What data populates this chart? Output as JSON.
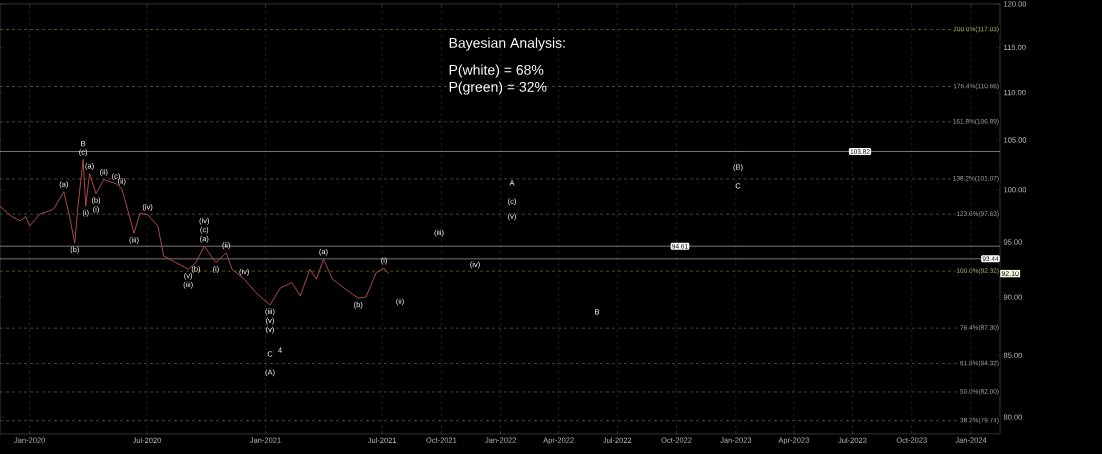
{
  "chart_data": {
    "type": "line",
    "log": "y",
    "grid": "x",
    "marker": "none",
    "xlim": [
      "2019-11-16",
      "2024-02-15"
    ],
    "ylim": [
      78.7,
      120
    ],
    "xticks": [
      {
        "value": "2020-01-01",
        "label": "Jan-2020"
      },
      {
        "value": "2020-07-01",
        "label": "Jul-2020"
      },
      {
        "value": "2021-01-01",
        "label": "Jan-2021"
      },
      {
        "value": "2021-07-01",
        "label": "Jul-2021"
      },
      {
        "value": "2021-10-01",
        "label": "Oct-2021"
      },
      {
        "value": "2022-01-01",
        "label": "Jan-2022"
      },
      {
        "value": "2022-04-01",
        "label": "Apr-2022"
      },
      {
        "value": "2022-07-01",
        "label": "Jul-2022"
      },
      {
        "value": "2022-10-01",
        "label": "Oct-2022"
      },
      {
        "value": "2023-01-01",
        "label": "Jan-2023"
      },
      {
        "value": "2023-04-01",
        "label": "Apr-2023"
      },
      {
        "value": "2023-07-01",
        "label": "Jul-2023"
      },
      {
        "value": "2023-10-01",
        "label": "Oct-2023"
      },
      {
        "value": "2024-01-01",
        "label": "Jan-2024"
      }
    ],
    "yticks": [
      {
        "value": 80,
        "label": "80.00"
      },
      {
        "value": 85,
        "label": "85.00"
      },
      {
        "value": 90,
        "label": "90.00"
      },
      {
        "value": 95,
        "label": "95.00"
      },
      {
        "value": 100,
        "label": "100.00"
      },
      {
        "value": 105,
        "label": "105.00"
      },
      {
        "value": 110,
        "label": "110.00"
      },
      {
        "value": 115,
        "label": "115.00"
      },
      {
        "value": 120,
        "label": "120.00"
      }
    ],
    "series": [
      {
        "color": "#c0504d",
        "x": [
          "2019-11-16",
          "2019-12-04",
          "2019-12-17",
          "2019-12-26",
          "2020-01-01",
          "2020-01-16",
          "2020-02-07",
          "2020-02-23",
          "2020-03-03",
          "2020-03-11",
          "2020-03-16",
          "2020-03-24",
          "2020-03-28",
          "2020-04-03",
          "2020-04-13",
          "2020-04-25",
          "2020-05-14",
          "2020-05-23",
          "2020-06-01",
          "2020-06-11",
          "2020-06-20",
          "2020-07-02",
          "2020-07-18",
          "2020-07-27",
          "2020-08-15",
          "2020-09-03",
          "2020-09-15",
          "2020-09-28",
          "2020-10-16",
          "2020-11-01",
          "2020-11-10",
          "2020-11-29",
          "2020-12-17",
          "2021-01-08",
          "2021-01-24",
          "2021-02-11",
          "2021-02-24",
          "2021-03-11",
          "2021-03-21",
          "2021-04-01",
          "2021-04-15",
          "2021-05-03",
          "2021-05-25",
          "2021-06-06",
          "2021-06-22",
          "2021-07-04",
          "2021-07-11"
        ],
        "values": [
          98.4,
          97.4,
          97.0,
          97.4,
          96.5,
          97.6,
          98.1,
          99.8,
          97.4,
          94.9,
          98.4,
          103.0,
          98.4,
          101.6,
          99.6,
          101.0,
          100.6,
          100.1,
          98.1,
          95.8,
          97.7,
          97.6,
          96.5,
          93.7,
          93.1,
          92.5,
          93.1,
          94.6,
          93.1,
          94.0,
          92.5,
          91.6,
          90.4,
          89.3,
          90.8,
          91.3,
          90.1,
          92.5,
          91.6,
          93.4,
          91.6,
          90.8,
          89.9,
          90.0,
          92.2,
          92.6,
          92.1
        ]
      }
    ],
    "ref_lines": [
      {
        "axis": "y",
        "value": 117.03,
        "label": "200.0%(117.03)",
        "color": "#8c8c00",
        "line_style": "dashed"
      },
      {
        "axis": "y",
        "value": 110.66,
        "label": "176.4%(110.66)",
        "color": "#6e6e6e",
        "line_style": "dashed"
      },
      {
        "axis": "y",
        "value": 106.89,
        "label": "161.8%(106.89)",
        "color": "#6e6e6e",
        "line_style": "dashed"
      },
      {
        "axis": "y",
        "value": 101.07,
        "label": "138.2%(101.07)",
        "color": "#6e6e6e",
        "line_style": "dashed"
      },
      {
        "axis": "y",
        "value": 97.63,
        "label": "123.6%(97.63)",
        "color": "#6e6e6e",
        "line_style": "dashed"
      },
      {
        "axis": "y",
        "value": 92.32,
        "label": "100.0%(92.32)",
        "color": "#8c8c00",
        "line_style": "dashed"
      },
      {
        "axis": "y",
        "value": 87.3,
        "label": "76.4%(87.30)",
        "color": "#6e6e6e",
        "line_style": "dashed"
      },
      {
        "axis": "y",
        "value": 84.32,
        "label": "61.8%(84.32)",
        "color": "#6e6e6e",
        "line_style": "dashed"
      },
      {
        "axis": "y",
        "value": 82.0,
        "label": "50.0%(82.00)",
        "color": "#6e6e6e",
        "line_style": "dashed"
      },
      {
        "axis": "y",
        "value": 79.74,
        "label": "38.2%(79.74)",
        "color": "#6e6e6e",
        "line_style": "dashed"
      },
      {
        "axis": "y",
        "value": 103.82,
        "label": "103.82",
        "color": "#c8c8c8",
        "line_style": "solid"
      },
      {
        "axis": "y",
        "value": 94.61,
        "label": "94.61",
        "color": "#c8c8c8",
        "line_style": "solid"
      },
      {
        "axis": "y",
        "value": 93.44,
        "label": "93.44",
        "color": "#c8c8c8",
        "line_style": "solid"
      }
    ],
    "annotations": [
      "Bayesian Analysis:",
      "P(white) = 68%",
      "P(green) = 32%",
      {
        "text": "92.10",
        "y": 92.1
      },
      {
        "text": "(c)",
        "x": "2020-03-24",
        "y": 103.0
      },
      {
        "text": "B",
        "x": "2020-03-24",
        "y": 103.0
      },
      {
        "text": "(ii)",
        "x": "2020-04-25",
        "y": 101.0
      },
      {
        "text": "(a)",
        "x": "2020-02-23",
        "y": 99.8
      },
      {
        "text": "(b)",
        "x": "2020-03-11",
        "y": 94.9
      },
      {
        "text": "(i)",
        "x": "2020-03-28",
        "y": 98.4
      },
      {
        "text": "(a)",
        "x": "2020-04-03",
        "y": 101.6
      },
      {
        "text": "(c)",
        "x": "2020-05-14",
        "y": 100.6
      },
      {
        "text": "(ii)",
        "x": "2020-05-23",
        "y": 100.1
      },
      {
        "text": "(b)",
        "x": "2020-04-13",
        "y": 99.6
      },
      {
        "text": "(i)",
        "x": "2020-04-13",
        "y": 99.6
      },
      {
        "text": "(iv)",
        "x": "2020-07-02",
        "y": 97.6
      },
      {
        "text": "(iii)",
        "x": "2020-06-11",
        "y": 95.8
      },
      {
        "text": "(v)",
        "x": "2020-09-03",
        "y": 92.5
      },
      {
        "text": "(iii)",
        "x": "2020-09-03",
        "y": 92.5
      },
      {
        "text": "(a)",
        "x": "2020-09-28",
        "y": 94.6
      },
      {
        "text": "(c)",
        "x": "2020-09-28",
        "y": 94.6
      },
      {
        "text": "(iv)",
        "x": "2020-09-28",
        "y": 94.6
      },
      {
        "text": "(b)",
        "x": "2020-09-15",
        "y": 93.1
      },
      {
        "text": "(i)",
        "x": "2020-10-16",
        "y": 93.1
      },
      {
        "text": "(ii)",
        "x": "2020-11-01",
        "y": 94.0
      },
      {
        "text": "(iv)",
        "x": "2020-11-29",
        "y": 91.6
      },
      {
        "text": "(iii)",
        "x": "2021-01-08",
        "y": 89.3
      },
      {
        "text": "(v)",
        "x": "2021-01-08",
        "y": 89.3
      },
      {
        "text": "(v)",
        "x": "2021-01-08",
        "y": 89.3
      },
      {
        "text": "(a)",
        "x": "2021-04-01",
        "y": 93.4
      },
      {
        "text": "(b)",
        "x": "2021-05-25",
        "y": 89.9
      },
      {
        "text": "(i)",
        "x": "2021-07-04",
        "y": 92.6
      },
      "C",
      "4",
      "(A)",
      "(ii)",
      "(iii)",
      "(iv)",
      "A",
      "(c)",
      "(v)",
      "B",
      "(B)",
      "C"
    ]
  }
}
